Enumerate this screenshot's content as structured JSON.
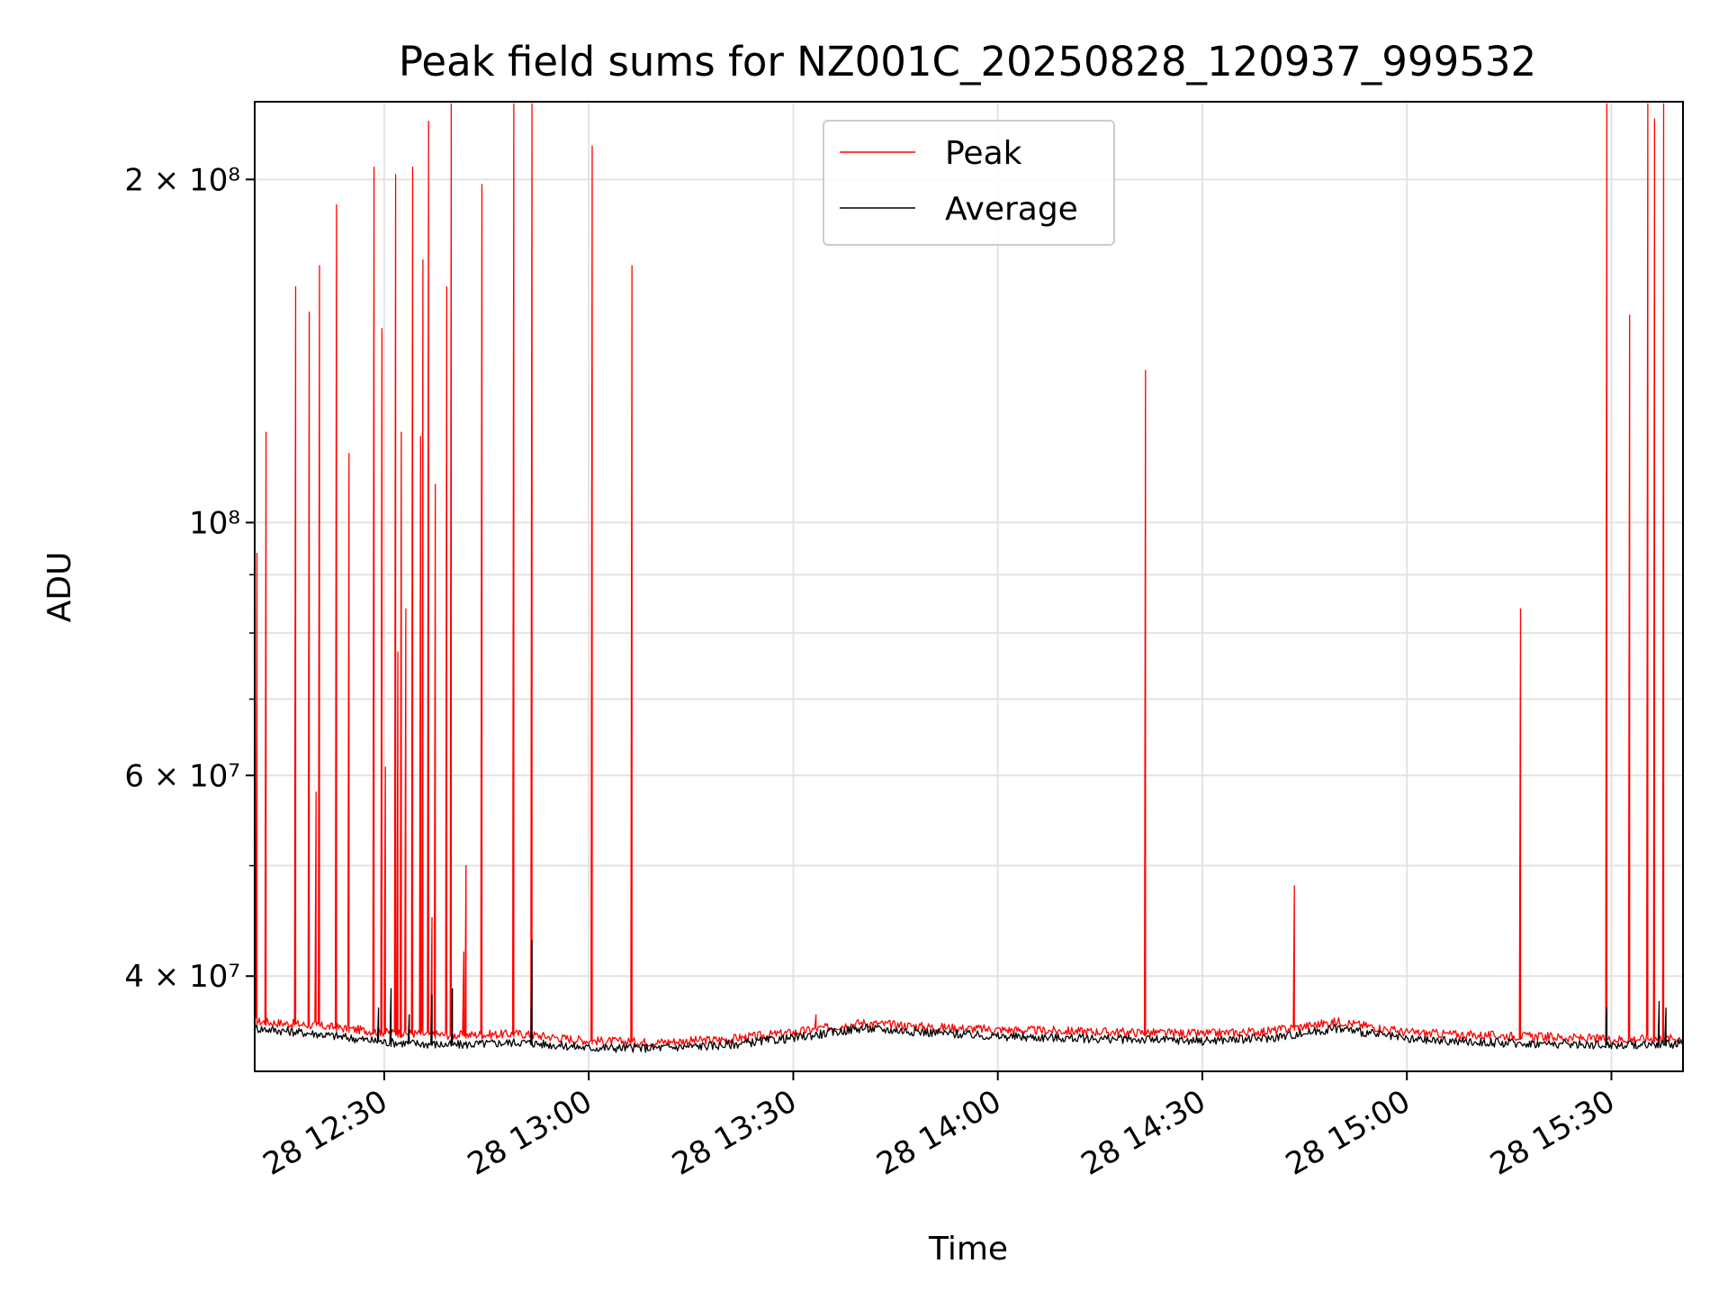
{
  "chart_data": {
    "type": "line",
    "title": "Peak field sums for NZ001C_20250828_120937_999532",
    "xlabel": "Time",
    "ylabel": "ADU",
    "y_scale": "log",
    "ylim": [
      33000000,
      234000000
    ],
    "xlim": [
      "2025-08-28 12:11:00",
      "2025-08-28 15:40:30"
    ],
    "grid": true,
    "legend_position": "upper center",
    "x_ticks": [
      {
        "t": "2025-08-28 12:30:00",
        "label": "28 12:30"
      },
      {
        "t": "2025-08-28 13:00:00",
        "label": "28 13:00"
      },
      {
        "t": "2025-08-28 13:30:00",
        "label": "28 13:30"
      },
      {
        "t": "2025-08-28 14:00:00",
        "label": "28 14:00"
      },
      {
        "t": "2025-08-28 14:30:00",
        "label": "28 14:30"
      },
      {
        "t": "2025-08-28 15:00:00",
        "label": "28 15:00"
      },
      {
        "t": "2025-08-28 15:30:00",
        "label": "28 15:30"
      }
    ],
    "y_ticks": [
      {
        "value": 40000000,
        "label": "4 × 10⁷"
      },
      {
        "value": 60000000,
        "label": "6 × 10⁷"
      },
      {
        "value": 100000000,
        "label": "10⁸"
      },
      {
        "value": 200000000,
        "label": "2 × 10⁸"
      }
    ],
    "y_minor_ticks": [
      50000000,
      70000000,
      80000000,
      90000000
    ],
    "series": [
      {
        "name": "Peak",
        "color": "#ff0000",
        "points": [
          [
            "2025-08-28 12:11:00",
            36500000
          ],
          [
            "2025-08-28 12:20:00",
            36200000
          ],
          [
            "2025-08-28 12:30:00",
            35700000
          ],
          [
            "2025-08-28 12:40:00",
            35500000
          ],
          [
            "2025-08-28 12:50:00",
            35600000
          ],
          [
            "2025-08-28 13:00:00",
            35100000
          ],
          [
            "2025-08-28 13:10:00",
            35000000
          ],
          [
            "2025-08-28 13:20:00",
            35200000
          ],
          [
            "2025-08-28 13:30:00",
            35700000
          ],
          [
            "2025-08-28 13:40:00",
            36400000
          ],
          [
            "2025-08-28 13:50:00",
            36100000
          ],
          [
            "2025-08-28 14:00:00",
            35900000
          ],
          [
            "2025-08-28 14:10:00",
            35800000
          ],
          [
            "2025-08-28 14:20:00",
            35700000
          ],
          [
            "2025-08-28 14:30:00",
            35600000
          ],
          [
            "2025-08-28 14:40:00",
            35800000
          ],
          [
            "2025-08-28 14:50:00",
            36500000
          ],
          [
            "2025-08-28 15:00:00",
            35700000
          ],
          [
            "2025-08-28 15:10:00",
            35500000
          ],
          [
            "2025-08-28 15:20:00",
            35400000
          ],
          [
            "2025-08-28 15:30:00",
            35200000
          ],
          [
            "2025-08-28 15:40:30",
            35300000
          ]
        ],
        "spikes": [
          [
            "2025-08-28 12:11:20",
            94000000
          ],
          [
            "2025-08-28 12:12:40",
            120000000
          ],
          [
            "2025-08-28 12:17:00",
            161000000
          ],
          [
            "2025-08-28 12:19:00",
            153000000
          ],
          [
            "2025-08-28 12:20:00",
            58000000
          ],
          [
            "2025-08-28 12:20:30",
            168000000
          ],
          [
            "2025-08-28 12:23:00",
            190000000
          ],
          [
            "2025-08-28 12:24:50",
            115000000
          ],
          [
            "2025-08-28 12:28:30",
            205000000
          ],
          [
            "2025-08-28 12:29:40",
            148000000
          ],
          [
            "2025-08-28 12:30:10",
            61000000
          ],
          [
            "2025-08-28 12:31:40",
            202000000
          ],
          [
            "2025-08-28 12:32:00",
            77000000
          ],
          [
            "2025-08-28 12:32:30",
            120000000
          ],
          [
            "2025-08-28 12:33:10",
            84000000
          ],
          [
            "2025-08-28 12:34:10",
            205000000
          ],
          [
            "2025-08-28 12:35:20",
            119000000
          ],
          [
            "2025-08-28 12:35:40",
            170000000
          ],
          [
            "2025-08-28 12:36:30",
            225000000
          ],
          [
            "2025-08-28 12:37:00",
            45000000
          ],
          [
            "2025-08-28 12:37:30",
            108000000
          ],
          [
            "2025-08-28 12:39:10",
            161000000
          ],
          [
            "2025-08-28 12:39:50",
            233000000
          ],
          [
            "2025-08-28 12:41:40",
            42000000
          ],
          [
            "2025-08-28 12:42:00",
            50000000
          ],
          [
            "2025-08-28 12:44:20",
            198000000
          ],
          [
            "2025-08-28 12:49:00",
            233000000
          ],
          [
            "2025-08-28 12:51:40",
            233000000
          ],
          [
            "2025-08-28 13:00:30",
            214000000
          ],
          [
            "2025-08-28 13:06:20",
            168000000
          ],
          [
            "2025-08-28 13:33:20",
            37000000
          ],
          [
            "2025-08-28 14:21:40",
            136000000
          ],
          [
            "2025-08-28 14:43:30",
            48000000
          ],
          [
            "2025-08-28 15:16:40",
            84000000
          ],
          [
            "2025-08-28 15:29:20",
            233000000
          ],
          [
            "2025-08-28 15:32:40",
            152000000
          ],
          [
            "2025-08-28 15:35:20",
            233000000
          ],
          [
            "2025-08-28 15:36:20",
            226000000
          ],
          [
            "2025-08-28 15:37:40",
            233000000
          ]
        ]
      },
      {
        "name": "Average",
        "color": "#000000",
        "points": [
          [
            "2025-08-28 12:11:00",
            36000000
          ],
          [
            "2025-08-28 12:20:00",
            35600000
          ],
          [
            "2025-08-28 12:30:00",
            35000000
          ],
          [
            "2025-08-28 12:40:00",
            34800000
          ],
          [
            "2025-08-28 12:50:00",
            35000000
          ],
          [
            "2025-08-28 13:00:00",
            34600000
          ],
          [
            "2025-08-28 13:10:00",
            34600000
          ],
          [
            "2025-08-28 13:20:00",
            34800000
          ],
          [
            "2025-08-28 13:30:00",
            35300000
          ],
          [
            "2025-08-28 13:40:00",
            36000000
          ],
          [
            "2025-08-28 13:50:00",
            35700000
          ],
          [
            "2025-08-28 14:00:00",
            35400000
          ],
          [
            "2025-08-28 14:10:00",
            35300000
          ],
          [
            "2025-08-28 14:20:00",
            35200000
          ],
          [
            "2025-08-28 14:30:00",
            35100000
          ],
          [
            "2025-08-28 14:40:00",
            35300000
          ],
          [
            "2025-08-28 14:50:00",
            36000000
          ],
          [
            "2025-08-28 15:00:00",
            35200000
          ],
          [
            "2025-08-28 15:10:00",
            35000000
          ],
          [
            "2025-08-28 15:20:00",
            34900000
          ],
          [
            "2025-08-28 15:30:00",
            34800000
          ],
          [
            "2025-08-28 15:40:30",
            34900000
          ]
        ],
        "spikes": [
          [
            "2025-08-28 12:29:10",
            37500000
          ],
          [
            "2025-08-28 12:31:00",
            39000000
          ],
          [
            "2025-08-28 12:33:40",
            37000000
          ],
          [
            "2025-08-28 12:37:00",
            38500000
          ],
          [
            "2025-08-28 12:40:00",
            39000000
          ],
          [
            "2025-08-28 12:51:40",
            43000000
          ],
          [
            "2025-08-28 15:29:20",
            37500000
          ],
          [
            "2025-08-28 15:37:00",
            38000000
          ],
          [
            "2025-08-28 15:38:00",
            37500000
          ]
        ]
      }
    ]
  }
}
